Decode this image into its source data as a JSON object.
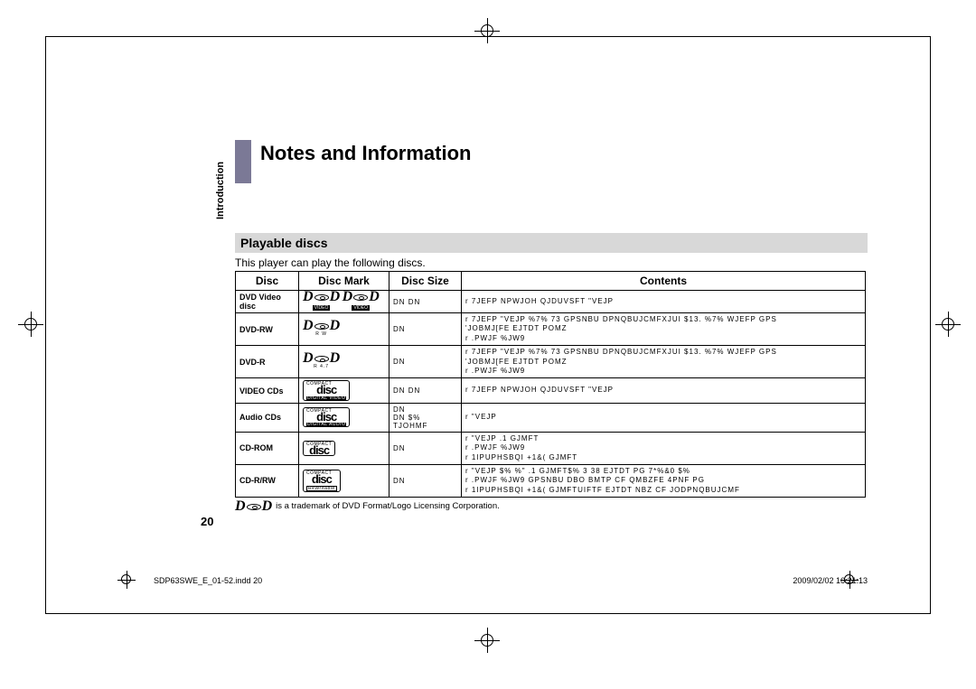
{
  "page": {
    "title": "Notes and Information",
    "side_label": "Introduction",
    "section_heading": "Playable discs",
    "intro_text": "This player can play the following discs.",
    "page_number": "20",
    "trademark_note": "is a trademark of DVD Format/Logo Licensing Corporation.",
    "footer_left": "SDP63SWE_E_01-52.indd   20",
    "footer_right": "2009/02/02   16:21:13"
  },
  "table": {
    "headers": [
      "Disc",
      "Disc Mark",
      "Disc Size",
      "Contents"
    ],
    "rows": [
      {
        "disc": "DVD Video disc",
        "mark_type": "dvd-video-double",
        "size": "DN  DN",
        "contents": "r 7JEFP NPWJOH QJDUVSFT  \"VEJP"
      },
      {
        "disc": "DVD-RW",
        "mark_type": "dvd-rw",
        "size": "DN",
        "contents": "r 7JEFP \"VEJP  %7% 73 GPSNBU  DPNQBUJCMFXJUI $13.  %7% WJEFP GPS\n  'JOBMJ[FE EJTDT POMZ\nr .PWJF %JW9"
      },
      {
        "disc": "DVD-R",
        "mark_type": "dvd-r",
        "size": "DN",
        "contents": "r 7JEFP \"VEJP  %7% 73 GPSNBU  DPNQBUJCMFXJUI $13.  %7% WJEFP GPS\n  'JOBMJ[FE EJTDT POMZ\nr .PWJF %JW9"
      },
      {
        "disc": "VIDEO CDs",
        "mark_type": "cd-video",
        "size": "DN  DN",
        "contents": "r 7JEFP NPWJOH QJDUVSFT  \"VEJP"
      },
      {
        "disc": "Audio CDs",
        "mark_type": "cd-audio",
        "size": "DN\nDN $% TJOHMF",
        "contents": "r \"VEJP"
      },
      {
        "disc": "CD-ROM",
        "mark_type": "cd-rom",
        "size": "DN",
        "contents": "r \"VEJP  .1 GJMFT\nr .PWJF %JW9\nr 1IPUPHSBQI +1&( GJMFT"
      },
      {
        "disc": "CD-R/RW",
        "mark_type": "cd-rw",
        "size": "DN",
        "contents": "r \"VEJP  $% %\"  .1 GJMFT$% 3 38 EJTDT PG 7*%&0 $%\nr .PWJF %JW9         GPSNBU DBO BMTP CF QMBZFE 4PNF PG\nr 1IPUPHSBQI +1&( GJMFTUIFTF EJTDT NBZ CF JODPNQBUJCMF"
      }
    ]
  },
  "logos": {
    "dvd_text": "DVD",
    "video_sub": "VIDEO",
    "rw_sub": "R W",
    "r_sub": "R 4.7",
    "compact": "COMPACT",
    "disc_text": "disc",
    "digital_video": "DIGITAL VIDEO",
    "digital_audio": "DIGITAL AUDIO",
    "rewritable": "ReWritable"
  }
}
